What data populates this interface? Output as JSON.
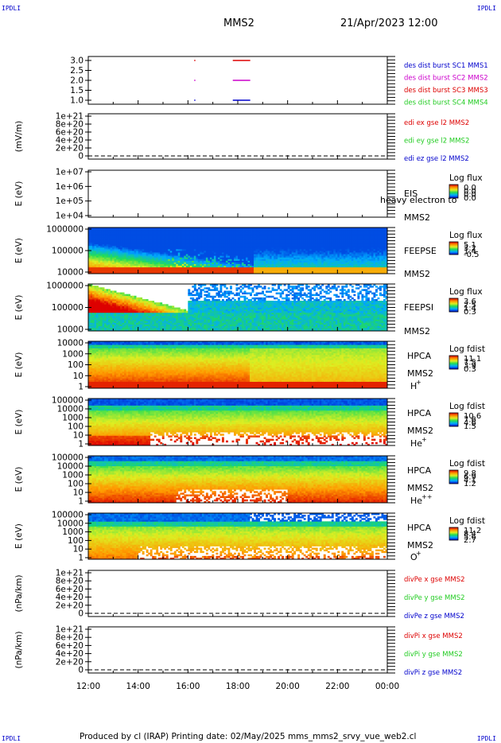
{
  "header": {
    "corner_tl": "IPDLI",
    "corner_tr": "IPDLI",
    "corner_bl": "IPDLI",
    "corner_br": "IPDLI",
    "spacecraft": "MMS2",
    "datetime": "21/Apr/2023 12:00"
  },
  "footer": {
    "text": "Produced by cl (IRAP)   Printing date: 02/May/2025   mms_mms2_srvy_vue_web2.cl"
  },
  "colors": {
    "red": "#dd0000",
    "green": "#22cc22",
    "blue": "#0000cc",
    "magenta": "#cc00cc"
  },
  "time_axis": {
    "ticks": [
      "12:00",
      "14:00",
      "16:00",
      "18:00",
      "20:00",
      "22:00",
      "00:00"
    ]
  },
  "chart_data": [
    {
      "id": "burst",
      "type": "scatter",
      "yticks": [
        "3.0",
        "2.5",
        "2.0",
        "1.5",
        "1.0"
      ],
      "ylim": [
        0.8,
        3.2
      ],
      "legend": [
        {
          "label": "des dist burst SC1 MMS1",
          "color": "blue"
        },
        {
          "label": "des dist burst SC2 MMS2",
          "color": "magenta"
        },
        {
          "label": "des dist burst SC3 MMS3",
          "color": "red"
        },
        {
          "label": "des dist burst SC4 MMS4",
          "color": "green"
        }
      ],
      "series": [
        {
          "color": "red",
          "segments": [
            {
              "t0": 16.25,
              "t1": 16.3,
              "y": 3.0
            },
            {
              "t0": 17.8,
              "t1": 18.5,
              "y": 3.0
            }
          ]
        },
        {
          "color": "magenta",
          "segments": [
            {
              "t0": 16.25,
              "t1": 16.3,
              "y": 2.0
            },
            {
              "t0": 17.8,
              "t1": 18.5,
              "y": 2.0
            }
          ]
        },
        {
          "color": "blue",
          "segments": [
            {
              "t0": 16.25,
              "t1": 16.3,
              "y": 1.0
            },
            {
              "t0": 17.8,
              "t1": 18.5,
              "y": 1.0
            }
          ]
        }
      ]
    },
    {
      "id": "edi",
      "type": "line",
      "ylabel": "(mV/m)",
      "yticks": [
        "1e+21",
        "8e+20",
        "6e+20",
        "4e+20",
        "2e+20",
        "0"
      ],
      "legend": [
        {
          "label": "edi ex gse l2 MMS2",
          "color": "red"
        },
        {
          "label": "edi ey gse l2 MMS2",
          "color": "green"
        },
        {
          "label": "edi ez gse l2 MMS2",
          "color": "blue"
        }
      ]
    },
    {
      "id": "eis",
      "type": "heatmap",
      "ylabel": "E (eV)",
      "yticks": [
        "1e+07",
        "1e+06",
        "1e+05",
        "1e+04"
      ],
      "instrument": "EIS",
      "subtitle": "heavy electron to",
      "sc": "MMS2",
      "cb_title": "Log flux",
      "cb_labels": [
        "0.0",
        "0.0",
        "0.0",
        "0.0"
      ]
    },
    {
      "id": "feepse",
      "type": "heatmap",
      "ylabel": "E (eV)",
      "yticks": [
        "1000000",
        "100000",
        "10000"
      ],
      "instrument": "FEEPSE",
      "sc": "MMS2",
      "cb_title": "Log flux",
      "cb_labels": [
        "5.1",
        "3.2",
        "1.4",
        "-0.5"
      ]
    },
    {
      "id": "feepsi",
      "type": "heatmap",
      "ylabel": "E (eV)",
      "yticks": [
        "1000000",
        "100000",
        "10000"
      ],
      "instrument": "FEEPSI",
      "sc": "MMS2",
      "cb_title": "Log flux",
      "cb_labels": [
        "3.6",
        "2.5",
        "1.4",
        "0.3"
      ]
    },
    {
      "id": "hpca_h",
      "type": "heatmap",
      "ylabel": "E (eV)",
      "yticks": [
        "10000",
        "1000",
        "100",
        "10",
        "1"
      ],
      "instrument": "HPCA",
      "sc": "MMS2",
      "species": "H",
      "charge": "+",
      "cb_title": "Log fdist",
      "cb_labels": [
        "11.1",
        "7.5",
        "3.9",
        "0.3"
      ]
    },
    {
      "id": "hpca_he",
      "type": "heatmap",
      "ylabel": "E (eV)",
      "yticks": [
        "100000",
        "10000",
        "1000",
        "100",
        "10",
        "1"
      ],
      "instrument": "HPCA",
      "sc": "MMS2",
      "species": "He",
      "charge": "+",
      "cb_title": "Log fdist",
      "cb_labels": [
        "10.6",
        "7.6",
        "4.6",
        "1.5"
      ]
    },
    {
      "id": "hpca_hepp",
      "type": "heatmap",
      "ylabel": "E (eV)",
      "yticks": [
        "100000",
        "10000",
        "1000",
        "100",
        "10",
        "1"
      ],
      "instrument": "HPCA",
      "sc": "MMS2",
      "species": "He",
      "charge": "++",
      "cb_title": "Log fdist",
      "cb_labels": [
        "9.8",
        "6.9",
        "4.1",
        "1.2"
      ]
    },
    {
      "id": "hpca_o",
      "type": "heatmap",
      "ylabel": "E (eV)",
      "yticks": [
        "100000",
        "10000",
        "1000",
        "100",
        "10",
        "1"
      ],
      "instrument": "HPCA",
      "sc": "MMS2",
      "species": "O",
      "charge": "+",
      "cb_title": "Log fdist",
      "cb_labels": [
        "11.2",
        "8.4",
        "5.6",
        "2.7"
      ]
    },
    {
      "id": "divpe",
      "type": "line",
      "ylabel": "(nPa/km)",
      "yticks": [
        "1e+21",
        "8e+20",
        "6e+20",
        "4e+20",
        "2e+20",
        "0"
      ],
      "legend": [
        {
          "label": "divPe x gse MMS2",
          "color": "red"
        },
        {
          "label": "divPe y gse MMS2",
          "color": "green"
        },
        {
          "label": "divPe z gse MMS2",
          "color": "blue"
        }
      ]
    },
    {
      "id": "divpi",
      "type": "line",
      "ylabel": "(nPa/km)",
      "yticks": [
        "1e+21",
        "8e+20",
        "6e+20",
        "4e+20",
        "2e+20",
        "0"
      ],
      "legend": [
        {
          "label": "divPi x gse MMS2",
          "color": "red"
        },
        {
          "label": "divPi y gse MMS2",
          "color": "green"
        },
        {
          "label": "divPi z gse MMS2",
          "color": "blue"
        }
      ]
    }
  ]
}
